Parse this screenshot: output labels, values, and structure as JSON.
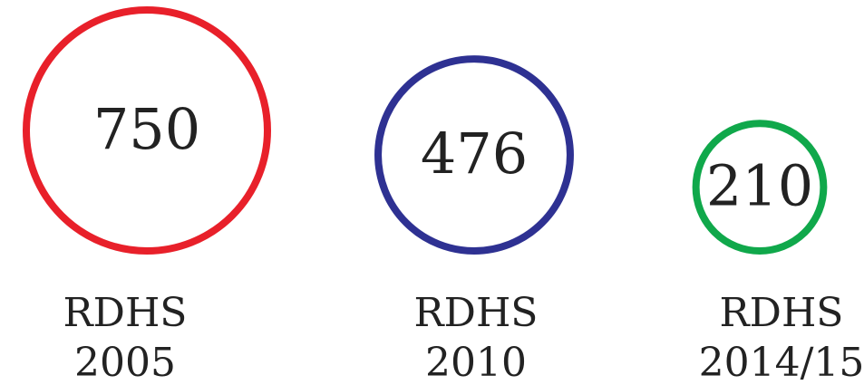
{
  "chart_data": {
    "type": "bubble",
    "categories": [
      "RDHS 2005",
      "RDHS 2010",
      "RDHS 2014/15"
    ],
    "values": [
      750,
      476,
      210
    ],
    "colors": [
      "#e8202a",
      "#2e3192",
      "#10a84b"
    ]
  }
}
